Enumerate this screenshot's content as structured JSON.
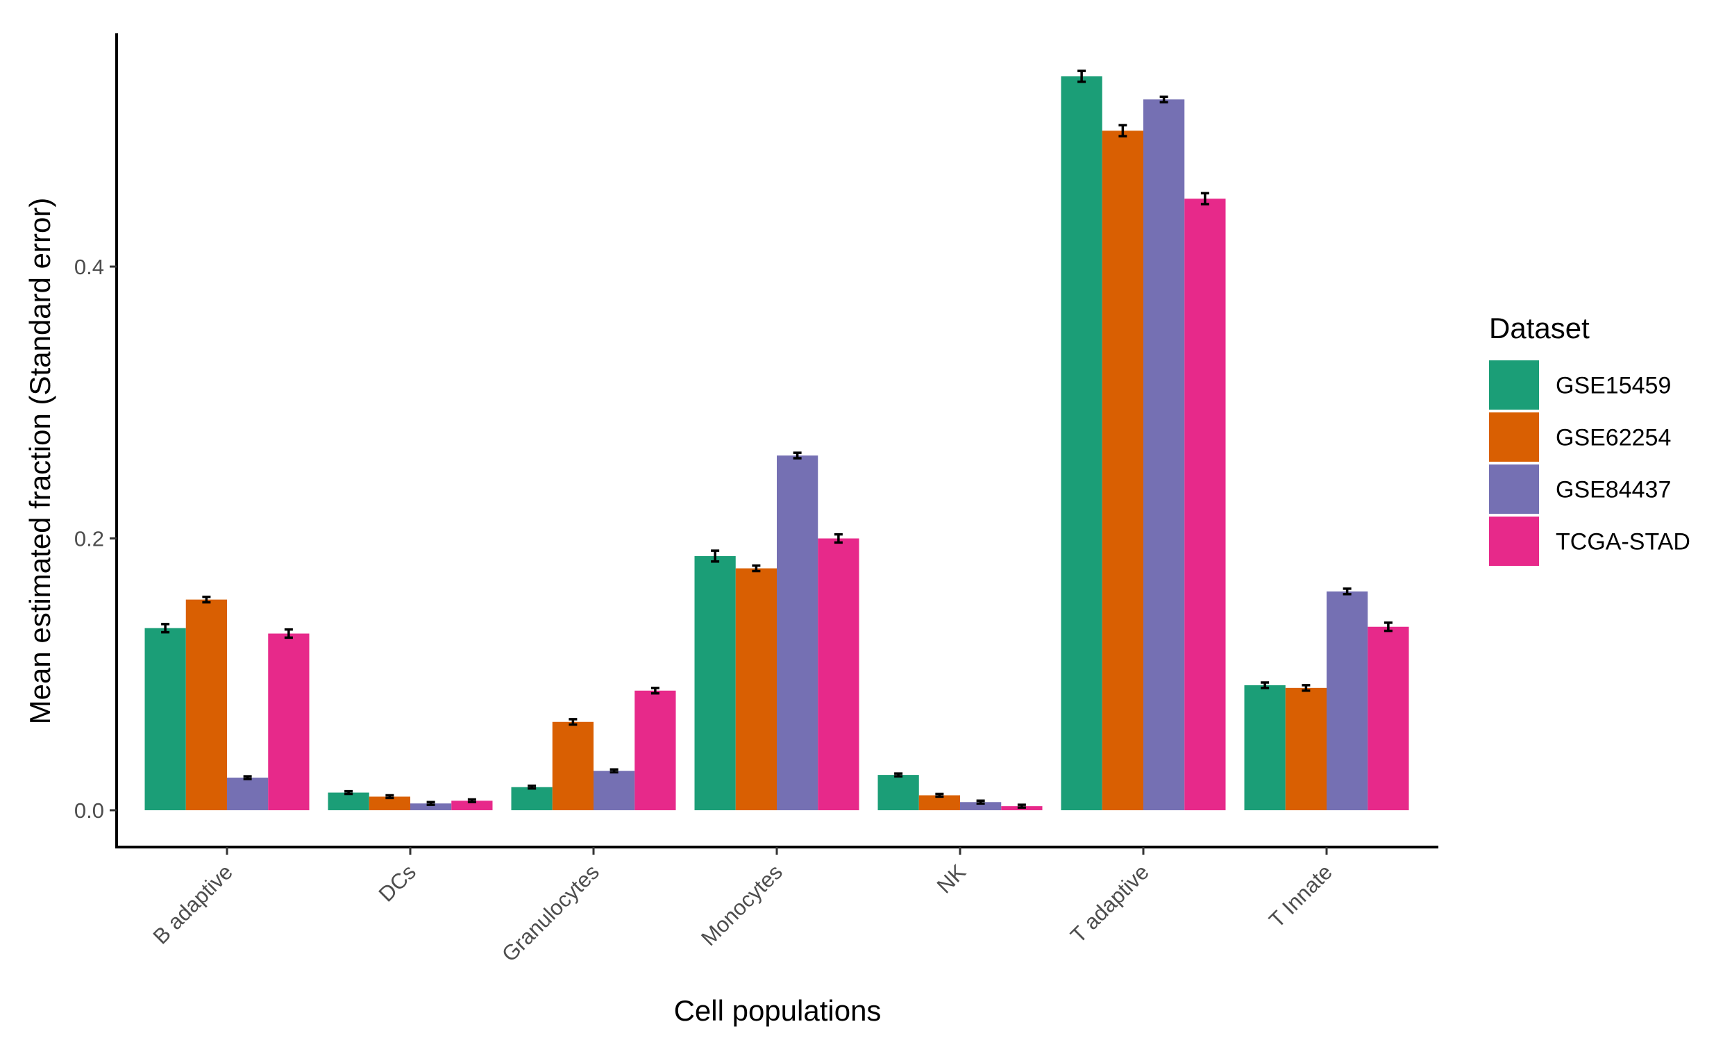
{
  "chart_data": {
    "type": "bar",
    "title": "",
    "xlabel": "Cell populations",
    "ylabel": "Mean estimated fraction (Standard error)",
    "ylim": [
      -0.027,
      0.57
    ],
    "yticks": [
      0.0,
      0.2,
      0.4
    ],
    "ytick_labels": [
      "0.0",
      "0.2",
      "0.4"
    ],
    "grid": false,
    "legend": {
      "title": "Dataset",
      "position": "right"
    },
    "categories": [
      "B adaptive",
      "DCs",
      "Granulocytes",
      "Monocytes",
      "NK",
      "T adaptive",
      "T Innate"
    ],
    "series": [
      {
        "name": "GSE15459",
        "color": "#1b9e77",
        "values": [
          0.134,
          0.013,
          0.017,
          0.187,
          0.026,
          0.54,
          0.092
        ],
        "se": [
          0.003,
          0.001,
          0.001,
          0.004,
          0.001,
          0.004,
          0.002
        ]
      },
      {
        "name": "GSE62254",
        "color": "#d95f02",
        "values": [
          0.155,
          0.01,
          0.065,
          0.178,
          0.011,
          0.5,
          0.09
        ],
        "se": [
          0.002,
          0.001,
          0.002,
          0.002,
          0.001,
          0.004,
          0.002
        ]
      },
      {
        "name": "GSE84437",
        "color": "#7570b3",
        "values": [
          0.024,
          0.005,
          0.029,
          0.261,
          0.006,
          0.523,
          0.161
        ],
        "se": [
          0.001,
          0.001,
          0.001,
          0.002,
          0.001,
          0.002,
          0.002
        ]
      },
      {
        "name": "TCGA-STAD",
        "color": "#e7298a",
        "values": [
          0.13,
          0.007,
          0.088,
          0.2,
          0.003,
          0.45,
          0.135
        ],
        "se": [
          0.003,
          0.001,
          0.002,
          0.003,
          0.001,
          0.004,
          0.003
        ]
      }
    ]
  }
}
